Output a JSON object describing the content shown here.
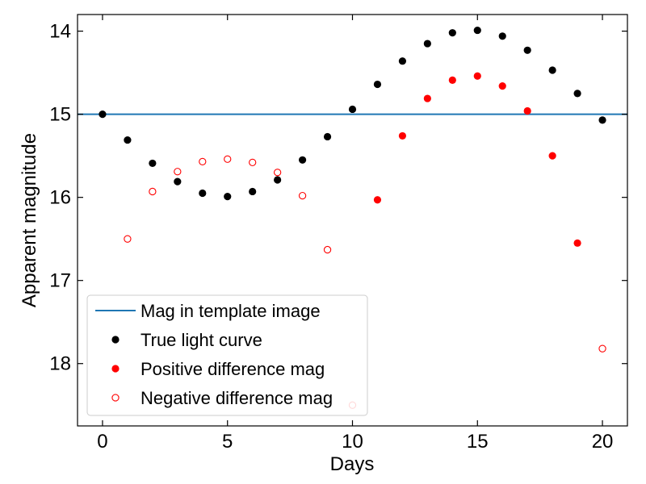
{
  "chart_data": {
    "type": "scatter",
    "xlabel": "Days",
    "ylabel": "Apparent magnitude",
    "xlim": [
      -1,
      21
    ],
    "ylim": [
      18.75,
      13.8
    ],
    "y_inverted": true,
    "grid": false,
    "legend_position": "lower-left",
    "x_ticks": [
      0,
      5,
      10,
      15,
      20
    ],
    "y_ticks": [
      14,
      15,
      16,
      17,
      18
    ],
    "template_mag": {
      "name": "Mag in template image",
      "value": 15,
      "color": "#1f77b4"
    },
    "series": [
      {
        "name": "True light curve",
        "style": "filled",
        "color": "#000000",
        "points": [
          [
            0,
            15.0
          ],
          [
            1,
            15.31
          ],
          [
            2,
            15.59
          ],
          [
            3,
            15.81
          ],
          [
            4,
            15.95
          ],
          [
            5,
            15.99
          ],
          [
            6,
            15.93
          ],
          [
            7,
            15.79
          ],
          [
            8,
            15.55
          ],
          [
            9,
            15.27
          ],
          [
            10,
            14.94
          ],
          [
            11,
            14.64
          ],
          [
            12,
            14.36
          ],
          [
            13,
            14.15
          ],
          [
            14,
            14.02
          ],
          [
            15,
            13.99
          ],
          [
            16,
            14.06
          ],
          [
            17,
            14.23
          ],
          [
            18,
            14.47
          ],
          [
            19,
            14.75
          ],
          [
            20,
            15.07
          ]
        ]
      },
      {
        "name": "Positive difference mag",
        "style": "filled",
        "color": "#ff0000",
        "points": [
          [
            11,
            16.03
          ],
          [
            12,
            15.26
          ],
          [
            13,
            14.81
          ],
          [
            14,
            14.59
          ],
          [
            15,
            14.54
          ],
          [
            16,
            14.66
          ],
          [
            17,
            14.96
          ],
          [
            18,
            15.5
          ],
          [
            19,
            16.55
          ]
        ]
      },
      {
        "name": "Negative difference mag",
        "style": "open",
        "color": "#ff0000",
        "points": [
          [
            1,
            16.5
          ],
          [
            2,
            15.93
          ],
          [
            3,
            15.69
          ],
          [
            4,
            15.57
          ],
          [
            5,
            15.54
          ],
          [
            6,
            15.58
          ],
          [
            7,
            15.7
          ],
          [
            8,
            15.98
          ],
          [
            9,
            16.63
          ],
          [
            10,
            18.5
          ],
          [
            20,
            17.82
          ]
        ]
      }
    ]
  }
}
